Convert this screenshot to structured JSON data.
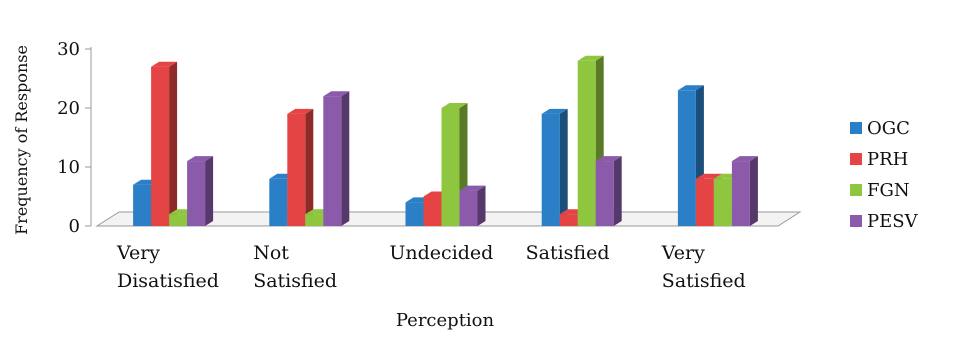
{
  "chart_data": {
    "type": "bar",
    "style": "3d-clustered-column",
    "categories": [
      [
        "Very",
        "Disatisfied"
      ],
      [
        "Not",
        "Satisfied"
      ],
      [
        "Undecided"
      ],
      [
        "Satisfied"
      ],
      [
        "Very",
        "Satisfied"
      ]
    ],
    "series": [
      {
        "name": "OGC",
        "color": "#2a7fc6",
        "values": [
          7,
          8,
          4,
          19,
          23
        ]
      },
      {
        "name": "PRH",
        "color": "#e54444",
        "values": [
          27,
          19,
          5,
          2,
          8
        ]
      },
      {
        "name": "FGN",
        "color": "#8fc63f",
        "values": [
          2,
          2,
          20,
          28,
          8
        ]
      },
      {
        "name": "PESV",
        "color": "#8b5aab",
        "values": [
          11,
          22,
          6,
          11,
          11
        ]
      }
    ],
    "title": "",
    "xlabel": "Perception",
    "ylabel": "Frequency of Response",
    "ylim": [
      0,
      30
    ],
    "yticks": [
      0,
      10,
      20,
      30
    ],
    "grid": false,
    "legend_position": "right"
  }
}
